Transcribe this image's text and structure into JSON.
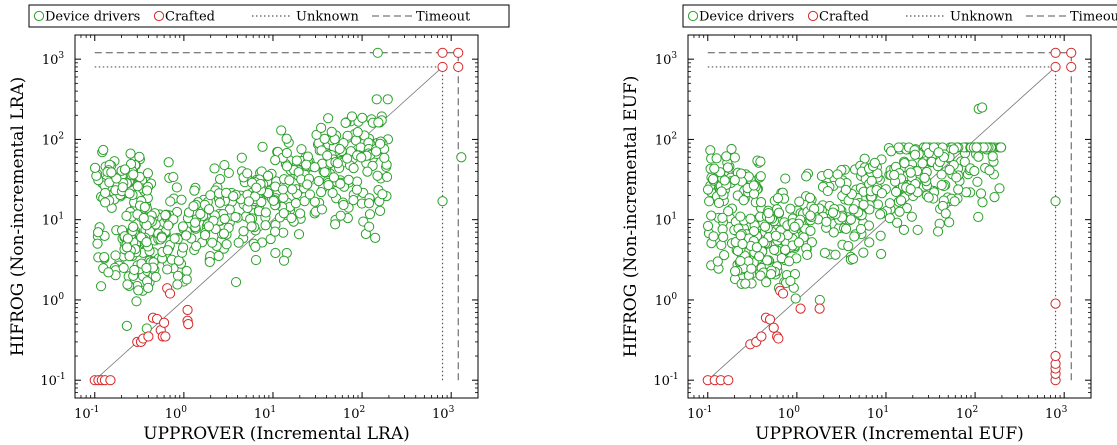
{
  "chart_data": [
    {
      "type": "scatter",
      "xlabel": "UPPROVER (Incremental LRA)",
      "ylabel": "HIFROG (Non-incremental LRA)",
      "xscale": "log",
      "yscale": "log",
      "xlim": [
        0.06,
        2000
      ],
      "ylim": [
        0.06,
        2000
      ],
      "x_ticks": [
        "10^-1",
        "10^0",
        "10^1",
        "10^2",
        "10^3"
      ],
      "y_ticks": [
        "10^-1",
        "10^0",
        "10^1",
        "10^2",
        "10^3"
      ],
      "legend": {
        "placement": "top",
        "entries": [
          "Device drivers",
          "Crafted",
          "Unknown",
          "Timeout"
        ]
      },
      "unknown_value": 800,
      "timeout_value": 1200,
      "diagonal": true,
      "series": [
        {
          "name": "Device drivers",
          "color": "#2ca02c",
          "seed": 11,
          "count": 620,
          "profile": "lra",
          "extra_points": [
            [
              150,
              1200
            ],
            [
              800,
              17
            ],
            [
              1300,
              60
            ]
          ]
        },
        {
          "name": "Crafted",
          "color": "#d62728",
          "seed": 23,
          "count": 0,
          "profile": "crafted_lra",
          "extra_points": [
            [
              0.1,
              0.1
            ],
            [
              0.11,
              0.1
            ],
            [
              0.12,
              0.1
            ],
            [
              0.13,
              0.1
            ],
            [
              0.15,
              0.1
            ],
            [
              0.3,
              0.3
            ],
            [
              0.33,
              0.3
            ],
            [
              0.35,
              0.33
            ],
            [
              0.4,
              0.35
            ],
            [
              0.45,
              0.6
            ],
            [
              0.5,
              0.58
            ],
            [
              0.55,
              0.42
            ],
            [
              0.6,
              0.52
            ],
            [
              0.65,
              1.4
            ],
            [
              0.7,
              1.2
            ],
            [
              0.58,
              0.35
            ],
            [
              0.62,
              0.35
            ],
            [
              1.1,
              0.55
            ],
            [
              1.1,
              0.75
            ],
            [
              1.12,
              0.5
            ],
            [
              800,
              800
            ],
            [
              800,
              1200
            ],
            [
              1200,
              800
            ],
            [
              1200,
              1200
            ]
          ]
        }
      ]
    },
    {
      "type": "scatter",
      "xlabel": "UPPROVER (Incremental EUF)",
      "ylabel": "HIFROG (Non-incremental EUF)",
      "xscale": "log",
      "yscale": "log",
      "xlim": [
        0.06,
        2000
      ],
      "ylim": [
        0.06,
        2000
      ],
      "x_ticks": [
        "10^-1",
        "10^0",
        "10^1",
        "10^2",
        "10^3"
      ],
      "y_ticks": [
        "10^-1",
        "10^0",
        "10^1",
        "10^2",
        "10^3"
      ],
      "legend": {
        "placement": "top",
        "entries": [
          "Device drivers",
          "Crafted",
          "Unknown",
          "Timeout"
        ]
      },
      "unknown_value": 800,
      "timeout_value": 1200,
      "diagonal": true,
      "series": [
        {
          "name": "Device drivers",
          "color": "#2ca02c",
          "seed": 37,
          "count": 600,
          "profile": "euf",
          "extra_points": [
            [
              800,
              17
            ],
            [
              110,
              240
            ],
            [
              120,
              250
            ]
          ]
        },
        {
          "name": "Crafted",
          "color": "#d62728",
          "seed": 41,
          "count": 0,
          "profile": "crafted_euf",
          "extra_points": [
            [
              0.1,
              0.1
            ],
            [
              0.12,
              0.1
            ],
            [
              0.14,
              0.1
            ],
            [
              0.17,
              0.1
            ],
            [
              0.3,
              0.28
            ],
            [
              0.35,
              0.3
            ],
            [
              0.4,
              0.35
            ],
            [
              0.45,
              0.6
            ],
            [
              0.5,
              0.57
            ],
            [
              0.55,
              0.45
            ],
            [
              0.6,
              0.35
            ],
            [
              0.62,
              0.33
            ],
            [
              0.65,
              1.3
            ],
            [
              0.7,
              1.2
            ],
            [
              1.1,
              0.78
            ],
            [
              1.8,
              0.78
            ],
            [
              800,
              0.9
            ],
            [
              800,
              0.1
            ],
            [
              800,
              0.12
            ],
            [
              800,
              0.14
            ],
            [
              800,
              0.16
            ],
            [
              800,
              0.2
            ],
            [
              800,
              800
            ],
            [
              800,
              1200
            ],
            [
              1200,
              800
            ],
            [
              1200,
              1200
            ]
          ]
        }
      ]
    }
  ]
}
